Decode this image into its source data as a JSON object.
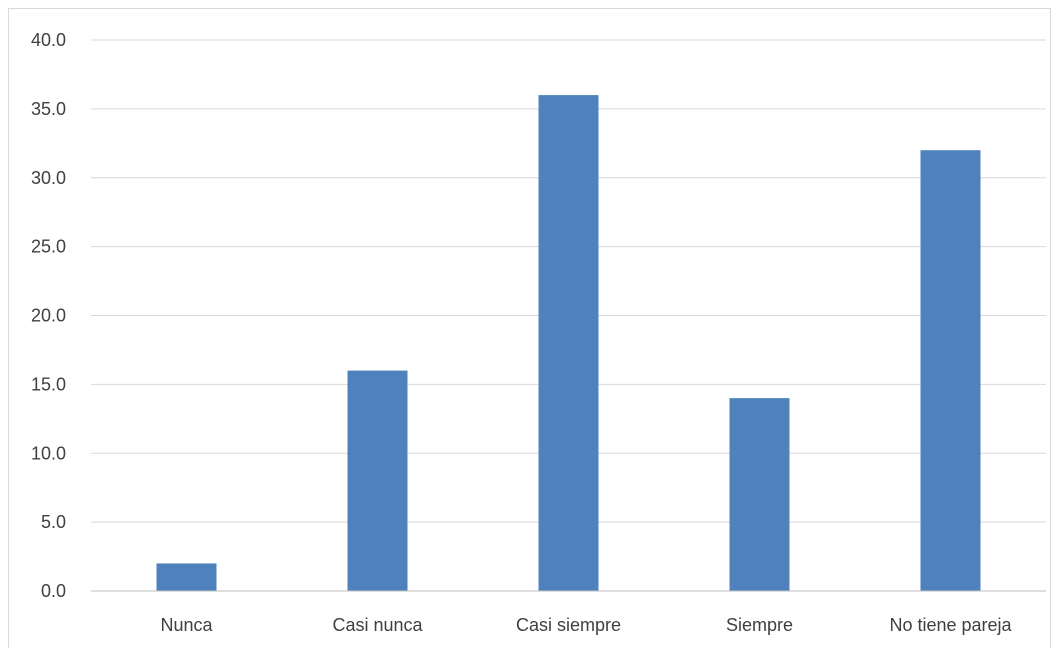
{
  "chart_data": {
    "type": "bar",
    "categories": [
      "Nunca",
      "Casi nunca",
      "Casi siempre",
      "Siempre",
      "No tiene pareja"
    ],
    "values": [
      2.0,
      16.0,
      36.0,
      14.0,
      32.0
    ],
    "title": "",
    "xlabel": "",
    "ylabel": "",
    "ylim": [
      0,
      40
    ],
    "yticks": [
      "0.0",
      "5.0",
      "10.0",
      "15.0",
      "20.0",
      "25.0",
      "30.0",
      "35.0",
      "40.0"
    ],
    "grid": true,
    "legend": "none",
    "bar_color": "#4f81bd",
    "grid_color": "#d9d9d9",
    "axis_color": "#bfbfbf"
  }
}
